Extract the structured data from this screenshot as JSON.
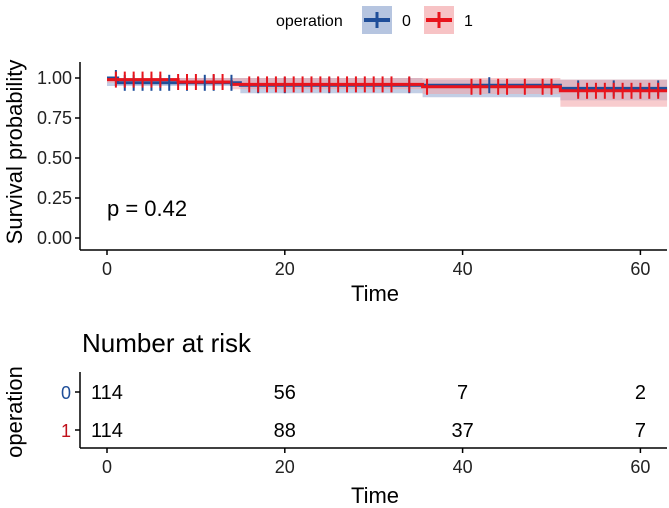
{
  "chart_data": [
    {
      "type": "line",
      "subtype": "kaplan-meier",
      "xlabel": "Time",
      "ylabel": "Survival probability",
      "xlim": [
        0,
        63
      ],
      "ylim": [
        0,
        1.0
      ],
      "x_ticks": [
        "0",
        "20",
        "40",
        "60"
      ],
      "y_ticks": [
        "0.00",
        "0.25",
        "0.50",
        "0.75",
        "1.00"
      ],
      "legend": {
        "title": "operation",
        "position": "top",
        "entries": [
          {
            "label": "0",
            "color": "#1f4e99"
          },
          {
            "label": "1",
            "color": "#e8141c"
          }
        ]
      },
      "annotation": "p = 0.42",
      "series": [
        {
          "name": "0",
          "color": "#1f4e99",
          "band_color": "#8fa6cf",
          "steps": [
            [
              0,
              1.0
            ],
            [
              1.2,
              0.97
            ],
            [
              15,
              0.955
            ],
            [
              35.5,
              0.955
            ],
            [
              51,
              0.935
            ],
            [
              63,
              0.935
            ]
          ],
          "ci_upper": [
            [
              0,
              1.0
            ],
            [
              15,
              1.0
            ],
            [
              35.5,
              0.99
            ],
            [
              51,
              0.99
            ],
            [
              63,
              0.99
            ]
          ],
          "ci_lower": [
            [
              0,
              0.95
            ],
            [
              15,
              0.905
            ],
            [
              35.5,
              0.88
            ],
            [
              51,
              0.86
            ],
            [
              63,
              0.86
            ]
          ],
          "censor_times": [
            1,
            2,
            3,
            4,
            5,
            6,
            7,
            9,
            11,
            12,
            14,
            17,
            20,
            25,
            34,
            43,
            53,
            57,
            62
          ]
        },
        {
          "name": "1",
          "color": "#e8141c",
          "band_color": "#f2a3a6",
          "steps": [
            [
              0,
              0.99
            ],
            [
              8,
              0.975
            ],
            [
              14,
              0.96
            ],
            [
              35.5,
              0.945
            ],
            [
              51,
              0.92
            ],
            [
              63,
              0.92
            ]
          ],
          "ci_upper": [
            [
              0,
              1.0
            ],
            [
              35.5,
              1.0
            ],
            [
              51,
              0.99
            ],
            [
              63,
              0.99
            ]
          ],
          "ci_lower": [
            [
              0,
              0.97
            ],
            [
              14,
              0.93
            ],
            [
              35.5,
              0.9
            ],
            [
              51,
              0.82
            ],
            [
              63,
              0.82
            ]
          ],
          "censor_times": [
            1,
            2,
            3,
            4,
            5,
            6,
            8,
            9,
            10,
            12,
            13,
            16,
            17,
            18,
            19,
            20,
            21,
            22,
            23,
            24,
            25,
            26,
            27,
            28,
            29,
            30,
            31,
            32,
            34,
            36,
            41,
            42,
            44,
            45,
            47,
            49,
            50,
            53,
            54,
            55,
            56,
            57,
            58,
            59,
            60,
            61,
            62
          ]
        }
      ]
    },
    {
      "type": "table",
      "title": "Number at risk",
      "ylabel": "operation",
      "xlabel": "Time",
      "x_ticks": [
        "0",
        "20",
        "40",
        "60"
      ],
      "time_points": [
        0,
        20,
        40,
        60
      ],
      "rows": [
        {
          "strata": "0",
          "color": "#1f4e99",
          "values": [
            "114",
            "56",
            "7",
            "2"
          ]
        },
        {
          "strata": "1",
          "color": "#c0101a",
          "values": [
            "114",
            "88",
            "37",
            "7"
          ]
        }
      ]
    }
  ]
}
